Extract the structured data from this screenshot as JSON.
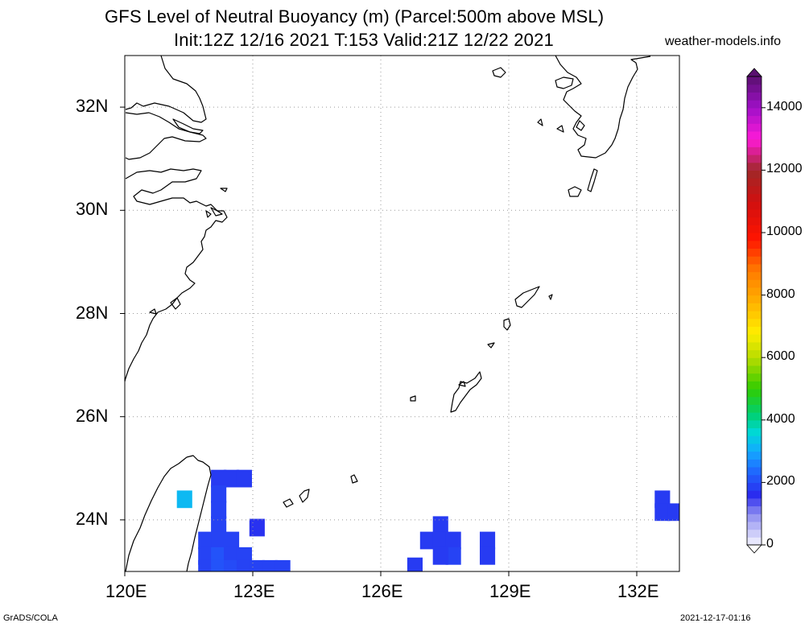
{
  "title": {
    "line1": "GFS Level of Neutral Buoyancy (m) (Parcel:500m above MSL)",
    "line2": "Init:12Z 12/16 2021 T:153 Valid:21Z 12/22 2021"
  },
  "source_label": "weather-models.info",
  "footer": {
    "left": "GrADS/COLA",
    "right": "2021-12-17-01:16"
  },
  "map": {
    "lon_range": [
      120,
      133
    ],
    "lat_range": [
      23,
      33
    ],
    "lon_ticks": [
      {
        "value": 120,
        "label": "120E"
      },
      {
        "value": 123,
        "label": "123E"
      },
      {
        "value": 126,
        "label": "126E"
      },
      {
        "value": 129,
        "label": "129E"
      },
      {
        "value": 132,
        "label": "132E"
      }
    ],
    "lat_ticks": [
      {
        "value": 24,
        "label": "24N"
      },
      {
        "value": 26,
        "label": "26N"
      },
      {
        "value": 28,
        "label": "28N"
      },
      {
        "value": 30,
        "label": "30N"
      },
      {
        "value": 32,
        "label": "32N"
      }
    ],
    "grid": "dotted",
    "field": "level_of_neutral_buoyancy_m",
    "cells": [
      {
        "lon": 121.4,
        "lat": 24.4,
        "value": 3200
      },
      {
        "lon": 122.2,
        "lat": 24.8,
        "value": 1800
      },
      {
        "lon": 122.5,
        "lat": 24.8,
        "value": 1800
      },
      {
        "lon": 122.8,
        "lat": 24.8,
        "value": 1800
      },
      {
        "lon": 122.2,
        "lat": 24.5,
        "value": 1900
      },
      {
        "lon": 122.2,
        "lat": 24.2,
        "value": 1900
      },
      {
        "lon": 122.2,
        "lat": 23.9,
        "value": 1900
      },
      {
        "lon": 121.9,
        "lat": 23.6,
        "value": 1900
      },
      {
        "lon": 122.2,
        "lat": 23.6,
        "value": 1900
      },
      {
        "lon": 122.5,
        "lat": 23.6,
        "value": 1900
      },
      {
        "lon": 121.9,
        "lat": 23.3,
        "value": 1900
      },
      {
        "lon": 122.2,
        "lat": 23.3,
        "value": 2100
      },
      {
        "lon": 122.5,
        "lat": 23.3,
        "value": 1900
      },
      {
        "lon": 122.8,
        "lat": 23.3,
        "value": 1900
      },
      {
        "lon": 121.9,
        "lat": 23.05,
        "value": 1900
      },
      {
        "lon": 122.2,
        "lat": 23.05,
        "value": 2100
      },
      {
        "lon": 122.5,
        "lat": 23.05,
        "value": 2000
      },
      {
        "lon": 122.8,
        "lat": 23.05,
        "value": 1900
      },
      {
        "lon": 123.1,
        "lat": 23.05,
        "value": 1900
      },
      {
        "lon": 123.4,
        "lat": 23.05,
        "value": 1900
      },
      {
        "lon": 123.7,
        "lat": 23.05,
        "value": 1900
      },
      {
        "lon": 123.1,
        "lat": 23.85,
        "value": 1700
      },
      {
        "lon": 127.4,
        "lat": 23.9,
        "value": 1800
      },
      {
        "lon": 127.1,
        "lat": 23.6,
        "value": 1800
      },
      {
        "lon": 127.4,
        "lat": 23.6,
        "value": 1800
      },
      {
        "lon": 127.7,
        "lat": 23.6,
        "value": 1800
      },
      {
        "lon": 127.7,
        "lat": 23.3,
        "value": 1900
      },
      {
        "lon": 127.4,
        "lat": 23.3,
        "value": 1800
      },
      {
        "lon": 128.5,
        "lat": 23.6,
        "value": 1800
      },
      {
        "lon": 128.5,
        "lat": 23.3,
        "value": 1800
      },
      {
        "lon": 126.8,
        "lat": 23.1,
        "value": 1800
      },
      {
        "lon": 132.6,
        "lat": 24.4,
        "value": 1800
      },
      {
        "lon": 132.6,
        "lat": 24.15,
        "value": 1800
      },
      {
        "lon": 132.9,
        "lat": 24.15,
        "value": 1800
      }
    ]
  },
  "colorbar": {
    "range": [
      0,
      15000
    ],
    "labels": [
      "0",
      "2000",
      "4000",
      "6000",
      "8000",
      "10000",
      "12000",
      "14000"
    ],
    "stops": [
      {
        "value": 0,
        "color": "#f4f4ff"
      },
      {
        "value": 1000,
        "color": "#8c8cf0"
      },
      {
        "value": 1600,
        "color": "#2a2aee"
      },
      {
        "value": 2400,
        "color": "#1f6cff"
      },
      {
        "value": 3000,
        "color": "#13a9ff"
      },
      {
        "value": 3600,
        "color": "#00d8d8"
      },
      {
        "value": 4200,
        "color": "#00d070"
      },
      {
        "value": 5000,
        "color": "#30cc00"
      },
      {
        "value": 6000,
        "color": "#b8dc00"
      },
      {
        "value": 6800,
        "color": "#ffee00"
      },
      {
        "value": 7800,
        "color": "#ffb000"
      },
      {
        "value": 8800,
        "color": "#ff7a00"
      },
      {
        "value": 9800,
        "color": "#ff1400"
      },
      {
        "value": 11000,
        "color": "#d01010"
      },
      {
        "value": 12000,
        "color": "#a02828"
      },
      {
        "value": 13000,
        "color": "#ff1ad8"
      },
      {
        "value": 14000,
        "color": "#a010c8"
      },
      {
        "value": 15000,
        "color": "#5a1070"
      }
    ]
  }
}
